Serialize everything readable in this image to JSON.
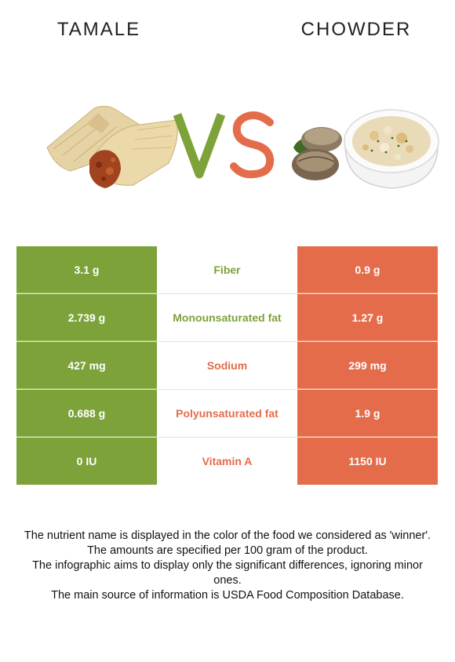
{
  "left_food": {
    "name": "TAMALE",
    "color": "#7da23a"
  },
  "right_food": {
    "name": "CHOWDER",
    "color": "#e46c4b"
  },
  "vs": {
    "v": "V",
    "s": "S",
    "v_color": "#7da23a",
    "s_color": "#e46c4b"
  },
  "rows": [
    {
      "left": "3.1 g",
      "nutrient": "Fiber",
      "right": "0.9 g",
      "winner": "left"
    },
    {
      "left": "2.739 g",
      "nutrient": "Monounsaturated fat",
      "right": "1.27 g",
      "winner": "left"
    },
    {
      "left": "427 mg",
      "nutrient": "Sodium",
      "right": "299 mg",
      "winner": "right"
    },
    {
      "left": "0.688 g",
      "nutrient": "Polyunsaturated fat",
      "right": "1.9 g",
      "winner": "right"
    },
    {
      "left": "0 IU",
      "nutrient": "Vitamin A",
      "right": "1150 IU",
      "winner": "right"
    }
  ],
  "footnote": {
    "line1": "The nutrient name is displayed in the color of the food we considered as 'winner'.",
    "line2": "The amounts are specified per 100 gram of the product.",
    "line3": "The infographic aims to display only the significant differences, ignoring minor ones.",
    "line4": "The main source of information is USDA Food Composition Database."
  }
}
